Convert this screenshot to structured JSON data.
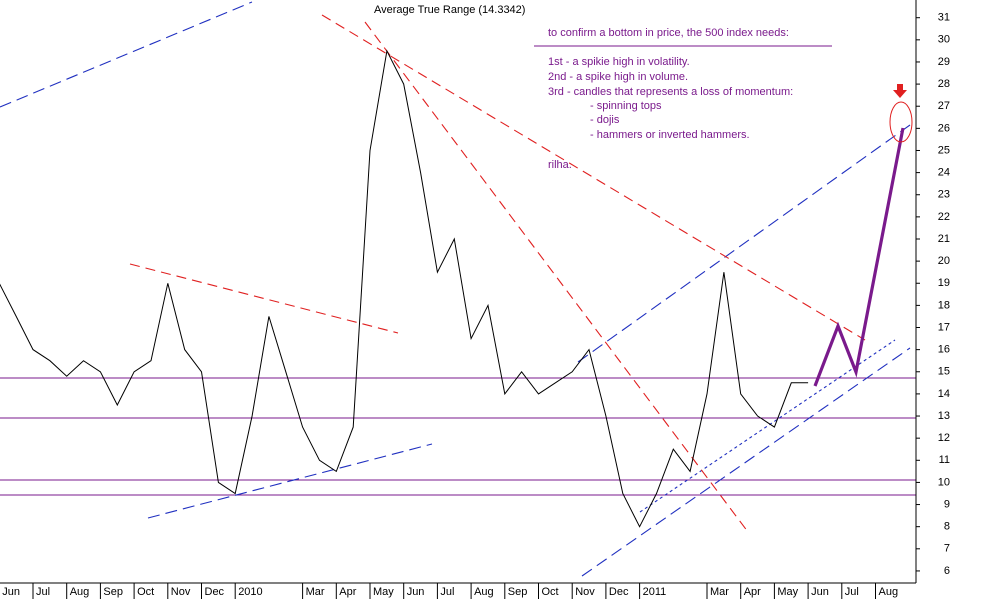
{
  "chart_data": {
    "type": "line",
    "title": "Average True Range (14.3342)",
    "annotations": [
      "to confirm a bottom in price, the 500 index needs:",
      "1st - a spikie high in volatility.",
      "2nd - a spike  high in volume.",
      "3rd - candles that represents a loss of momentum:",
      "- spinning tops",
      "- dojis",
      "-  hammers or inverted hammers.",
      "rilha."
    ],
    "categories": [
      "Jun",
      null,
      "Jul",
      null,
      "Aug",
      null,
      "Sep",
      null,
      "Oct",
      null,
      "Nov",
      null,
      "Dec",
      null,
      "2010",
      null,
      null,
      null,
      "Mar",
      null,
      "Apr",
      null,
      "May",
      null,
      "Jun",
      null,
      "Jul",
      null,
      "Aug",
      null,
      "Sep",
      null,
      "Oct",
      null,
      "Nov",
      null,
      "Dec",
      null,
      "2011",
      null,
      null,
      null,
      "Mar",
      null,
      "Apr",
      null,
      "May",
      null,
      "Jun",
      null,
      "Jul",
      null,
      "Aug",
      null
    ],
    "series": [
      {
        "name": "ATR",
        "color": "#000000",
        "values": [
          19,
          17.5,
          16,
          15.5,
          14.8,
          15.5,
          15,
          13.5,
          15,
          15.5,
          19,
          16,
          15,
          10,
          9.5,
          13,
          17.5,
          15,
          12.5,
          11,
          10.5,
          12.5,
          25,
          29.5,
          28,
          24,
          19.5,
          21,
          16.5,
          18,
          14,
          15,
          14,
          14.5,
          15,
          16,
          13,
          9.5,
          8,
          9.5,
          11.5,
          10.5,
          14,
          19.5,
          14,
          13,
          12.5,
          14.5,
          14.5,
          null,
          null,
          null,
          null,
          null
        ]
      }
    ],
    "ylim": [
      5.5,
      31.8
    ],
    "yticks": [
      6,
      7,
      8,
      9,
      10,
      11,
      12,
      13,
      14,
      15,
      16,
      17,
      18,
      19,
      20,
      21,
      22,
      23,
      24,
      25,
      26,
      27,
      28,
      29,
      30,
      31
    ]
  }
}
